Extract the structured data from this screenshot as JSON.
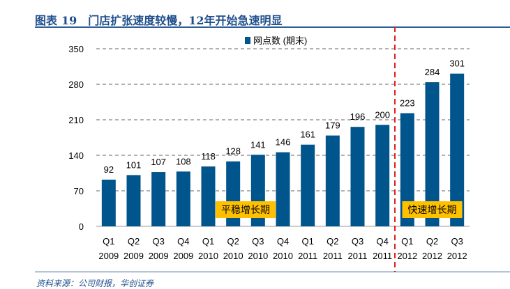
{
  "header": {
    "label": "图表",
    "number": "19",
    "text": "门店扩张速度较慢，12年开始急速明显"
  },
  "footer": {
    "source": "资料来源：公司财报，华创证券"
  },
  "chart_data": {
    "type": "bar",
    "title": "门店扩张速度较慢，12年开始急速明显",
    "categories": [
      [
        "Q1",
        "2009"
      ],
      [
        "Q2",
        "2009"
      ],
      [
        "Q3",
        "2009"
      ],
      [
        "Q4",
        "2009"
      ],
      [
        "Q1",
        "2010"
      ],
      [
        "Q2",
        "2010"
      ],
      [
        "Q3",
        "2010"
      ],
      [
        "Q4",
        "2010"
      ],
      [
        "Q1",
        "2011"
      ],
      [
        "Q2",
        "2011"
      ],
      [
        "Q3",
        "2011"
      ],
      [
        "Q4",
        "2011"
      ],
      [
        "Q1",
        "2012"
      ],
      [
        "Q2",
        "2012"
      ],
      [
        "Q3",
        "2012"
      ]
    ],
    "series": [
      {
        "name": "网点数 (期末)",
        "values": [
          92,
          101,
          107,
          108,
          118,
          128,
          141,
          146,
          161,
          179,
          196,
          200,
          223,
          284,
          301
        ],
        "color": "#00558c"
      }
    ],
    "ylim": [
      0,
      350
    ],
    "yticks": [
      0,
      70,
      140,
      210,
      280,
      350
    ],
    "grid": true,
    "legend": "top-center",
    "divider_after_index": 11,
    "divider_color": "#e0201b",
    "annotations": [
      {
        "text": "平稳增长期",
        "span": [
          4,
          7
        ],
        "color": "#ffc000"
      },
      {
        "text": "快速增长期",
        "span": [
          12,
          14
        ],
        "color": "#ffc000"
      }
    ]
  }
}
